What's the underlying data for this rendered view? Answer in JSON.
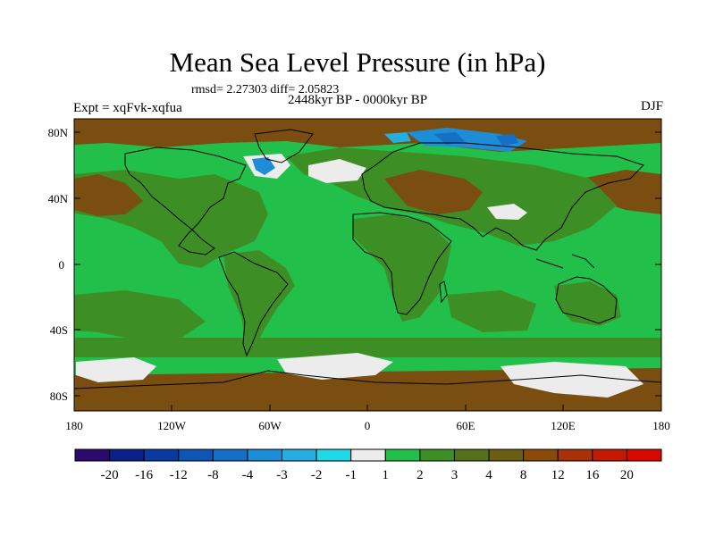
{
  "title": "Mean Sea Level Pressure (in hPa)",
  "stats": "rmsd= 2.27303 diff= 2.05823",
  "experiment": "Expt = xqFvk-xqfua",
  "period": "2448kyr BP - 0000kyr BP",
  "season": "DJF",
  "y_ticks": [
    "80N",
    "40N",
    "0",
    "40S",
    "80S"
  ],
  "x_ticks": [
    "180",
    "120W",
    "60W",
    "0",
    "60E",
    "120E",
    "180"
  ],
  "colorbar": {
    "labels": [
      "-20",
      "-16",
      "-12",
      "-8",
      "-4",
      "-3",
      "-2",
      "-1",
      "1",
      "2",
      "3",
      "4",
      "8",
      "12",
      "16",
      "20"
    ],
    "colors": [
      "#2b0a6e",
      "#0d1f8a",
      "#0a3a9e",
      "#0f56b3",
      "#1470c4",
      "#1c8dd6",
      "#25aee0",
      "#1fd8e6",
      "#ececec",
      "#22c04a",
      "#3d8f25",
      "#54721b",
      "#6b5e12",
      "#8a4a0c",
      "#a83208",
      "#c41a04",
      "#d60a00"
    ]
  },
  "palette": {
    "green": "#22c04a",
    "olive": "#3d8f25",
    "brown": "#7a4e10",
    "white": "#ececec",
    "blue": "#1c8dd6",
    "darkblue": "#1470c4",
    "cyan": "#25aee0"
  }
}
